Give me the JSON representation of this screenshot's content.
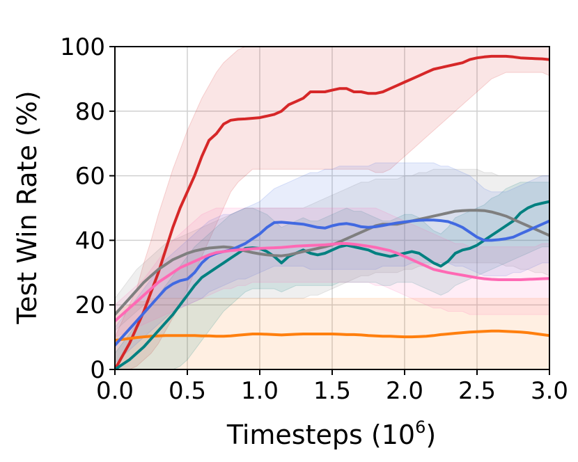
{
  "chart_data": {
    "type": "line",
    "title": "",
    "xlabel_main": "Timesteps (10",
    "xlabel_sup": "6",
    "xlabel_close": ")",
    "ylabel": "Test Win Rate (%)",
    "xlim": [
      0.0,
      3.0
    ],
    "ylim": [
      0,
      100
    ],
    "xticks": [
      "0.0",
      "0.5",
      "1.0",
      "1.5",
      "2.0",
      "2.5",
      "3.0"
    ],
    "yticks": [
      "0",
      "20",
      "40",
      "60",
      "80",
      "100"
    ],
    "grid": true,
    "x": [
      0.0,
      0.05,
      0.1,
      0.15,
      0.2,
      0.25,
      0.3,
      0.35,
      0.4,
      0.45,
      0.5,
      0.55,
      0.6,
      0.65,
      0.7,
      0.75,
      0.8,
      0.85,
      0.9,
      0.95,
      1.0,
      1.05,
      1.1,
      1.15,
      1.2,
      1.25,
      1.3,
      1.35,
      1.4,
      1.45,
      1.5,
      1.55,
      1.6,
      1.65,
      1.7,
      1.75,
      1.8,
      1.85,
      1.9,
      1.95,
      2.0,
      2.05,
      2.1,
      2.15,
      2.2,
      2.25,
      2.3,
      2.35,
      2.4,
      2.45,
      2.5,
      2.55,
      2.6,
      2.65,
      2.7,
      2.75,
      2.8,
      2.85,
      2.9,
      2.95,
      3.0
    ],
    "series": [
      {
        "color": "#d62728",
        "values": [
          0,
          4,
          8,
          13,
          18,
          24,
          30,
          37,
          44,
          50,
          55,
          60,
          66,
          71,
          73,
          76,
          77.2,
          77.5,
          77.6,
          77.8,
          78,
          78.5,
          79,
          80,
          82,
          83,
          84,
          86,
          86,
          86,
          86.5,
          87,
          87,
          86,
          86,
          85.5,
          85.5,
          86,
          87,
          88,
          89,
          90,
          91,
          92,
          93,
          93.5,
          94,
          94.5,
          95,
          96,
          96.5,
          96.8,
          97,
          97,
          97,
          96.8,
          96.5,
          96.4,
          96.3,
          96.2,
          96
        ],
        "lower": [
          0,
          0,
          0,
          1,
          3,
          5,
          8,
          12,
          16,
          20,
          25,
          30,
          35,
          40,
          45,
          50,
          55,
          58,
          60,
          62,
          62,
          62,
          62,
          62,
          62,
          62,
          62,
          62,
          62,
          62,
          62,
          62,
          62,
          62,
          62,
          62,
          61,
          61,
          62,
          64,
          66,
          68,
          70,
          72,
          74,
          76,
          78,
          80,
          82,
          84,
          86,
          88,
          90,
          91,
          92,
          92,
          92,
          92,
          92,
          92,
          91
        ],
        "upper": [
          10,
          15,
          20,
          25,
          33,
          40,
          48,
          55,
          62,
          68,
          74,
          79,
          84,
          88,
          92,
          95,
          97,
          99,
          100,
          100,
          100,
          100,
          100,
          100,
          100,
          100,
          100,
          100,
          100,
          100,
          100,
          100,
          100,
          100,
          100,
          100,
          100,
          100,
          100,
          100,
          100,
          100,
          100,
          100,
          100,
          100,
          100,
          100,
          100,
          100,
          100,
          100,
          100,
          100,
          100,
          100,
          100,
          100,
          100,
          100,
          100
        ]
      },
      {
        "color": "#ff7f0e",
        "values": [
          9,
          9.3,
          9.6,
          9.9,
          10.1,
          10.3,
          10.4,
          10.5,
          10.5,
          10.5,
          10.5,
          10.5,
          10.4,
          10.4,
          10.3,
          10.3,
          10.4,
          10.6,
          10.8,
          11,
          11,
          10.9,
          10.8,
          10.7,
          10.8,
          10.9,
          11,
          11,
          11,
          11,
          11,
          10.9,
          10.8,
          10.8,
          10.7,
          10.5,
          10.4,
          10.3,
          10.3,
          10.2,
          10.1,
          10.1,
          10.2,
          10.3,
          10.5,
          10.8,
          11,
          11.2,
          11.4,
          11.6,
          11.7,
          11.8,
          11.9,
          11.9,
          11.8,
          11.7,
          11.6,
          11.4,
          11.1,
          10.8,
          10.5
        ],
        "lower": [
          0,
          0,
          0,
          0,
          0,
          0,
          0,
          0,
          0,
          0,
          0,
          0,
          0,
          0,
          0,
          0,
          0,
          0,
          0,
          0,
          0,
          0,
          0,
          0,
          0,
          0,
          0,
          0,
          0,
          0,
          0,
          0,
          0,
          0,
          0,
          0,
          0,
          0,
          0,
          0,
          0,
          0,
          0,
          0,
          0,
          0,
          0,
          0,
          0,
          0,
          0,
          0,
          0,
          0,
          0,
          0,
          0,
          0,
          0,
          0,
          0
        ],
        "upper": [
          18,
          19,
          20,
          21,
          21,
          22,
          22,
          22,
          22,
          22,
          22,
          22,
          22,
          22,
          22,
          22,
          22,
          22,
          22,
          22,
          22,
          22,
          22,
          22,
          22,
          22,
          22,
          22,
          22,
          22,
          22,
          22,
          22,
          22,
          22,
          22,
          22,
          22,
          22,
          22,
          22,
          22,
          22,
          22,
          22,
          22,
          22,
          22,
          22,
          22,
          22,
          22,
          22,
          22,
          22,
          22,
          22,
          22,
          22,
          22,
          22
        ]
      },
      {
        "color": "#008080",
        "values": [
          0,
          1.5,
          3,
          5,
          7,
          9.5,
          12,
          14.5,
          17,
          20,
          23,
          26,
          28.5,
          30,
          31.5,
          33,
          34.5,
          36,
          37.5,
          37.7,
          37.5,
          36.5,
          35,
          33,
          35,
          36,
          37,
          36,
          35.5,
          36,
          37,
          38,
          38.5,
          38,
          37.5,
          37,
          36,
          35.5,
          35,
          35.5,
          36,
          36.5,
          36,
          34.5,
          33,
          32,
          33.5,
          36,
          37,
          37.5,
          38.5,
          40,
          41.5,
          43,
          44.5,
          46,
          48.5,
          50,
          51,
          51.5,
          52
        ],
        "lower": [
          0,
          0,
          0,
          0,
          0,
          0,
          0,
          0,
          0,
          1,
          3,
          6,
          9,
          12,
          15,
          18,
          20,
          22,
          24,
          25,
          25,
          25,
          25,
          24,
          25,
          26,
          26,
          26,
          26,
          26,
          26,
          27,
          27,
          27,
          27,
          27,
          27,
          26,
          26,
          27,
          27,
          27,
          26,
          25,
          24,
          23,
          24,
          26,
          27,
          28,
          29,
          30,
          31,
          32,
          33,
          34,
          35,
          36,
          37,
          38,
          38
        ],
        "upper": [
          5,
          8,
          11,
          14,
          17,
          20,
          23,
          26,
          29,
          32,
          35,
          38,
          40,
          42,
          44,
          46,
          48,
          49,
          50,
          50,
          49,
          48,
          46,
          44,
          45,
          46,
          47,
          46,
          46,
          47,
          48,
          49,
          50,
          49,
          49,
          48,
          47,
          46,
          46,
          47,
          48,
          48,
          47,
          45,
          43,
          42,
          44,
          47,
          48,
          49,
          50,
          51,
          53,
          54,
          56,
          57,
          58,
          58,
          58,
          58,
          58
        ]
      },
      {
        "color": "#7f7f7f",
        "values": [
          17,
          19.5,
          22,
          24.5,
          27,
          29,
          31,
          32.5,
          34,
          35,
          36,
          36.7,
          37.2,
          37.6,
          37.8,
          38,
          37.8,
          37.3,
          36.7,
          36.2,
          35.8,
          35.5,
          35.3,
          35.2,
          35.5,
          36,
          36.5,
          37,
          37.5,
          38,
          38.6,
          39.5,
          40.5,
          41.5,
          42.5,
          43.5,
          44.5,
          45,
          45,
          45,
          45.5,
          46,
          46.5,
          47,
          47.5,
          48,
          48.5,
          49,
          49.2,
          49.3,
          49.3,
          49.2,
          48.8,
          48.2,
          47.5,
          46.5,
          45.5,
          44.5,
          43.5,
          42.5,
          41.5
        ],
        "lower": [
          12,
          14,
          16,
          18,
          20,
          21,
          22,
          22,
          22,
          22,
          22,
          22,
          22,
          22,
          22,
          22,
          22,
          22,
          22,
          22,
          22,
          22,
          22,
          22,
          22,
          22,
          22,
          23,
          23,
          24,
          25,
          26,
          27,
          28,
          29,
          29,
          30,
          30,
          30,
          30,
          31,
          31,
          32,
          32,
          33,
          33,
          33,
          33,
          33,
          33,
          33,
          33,
          33,
          33,
          32,
          32,
          31,
          31,
          30,
          30,
          29
        ],
        "upper": [
          22,
          25,
          28,
          31,
          33,
          35,
          37,
          39,
          40,
          41,
          42,
          43,
          44,
          45,
          46,
          47,
          48,
          49,
          50,
          50,
          50,
          50,
          50,
          50,
          50,
          50,
          50,
          51,
          52,
          53,
          54,
          55,
          56,
          57,
          58,
          58,
          59,
          59,
          59,
          59,
          60,
          60,
          61,
          61,
          62,
          62,
          62,
          62,
          62,
          62,
          62,
          61,
          61,
          60,
          60,
          60,
          60,
          60,
          60,
          60,
          60
        ]
      },
      {
        "color": "#4169e1",
        "values": [
          7.5,
          10,
          12.5,
          15,
          17.5,
          20,
          22.5,
          25,
          26.5,
          27.5,
          28,
          30,
          33,
          35,
          36,
          36.5,
          37,
          38,
          39,
          40.5,
          42,
          44,
          45.5,
          45.6,
          45.4,
          45.2,
          45,
          44.5,
          44,
          43.8,
          44.5,
          45,
          45.2,
          44.8,
          44.2,
          44,
          44.2,
          44.6,
          45,
          45.4,
          45.7,
          46,
          46.2,
          46.3,
          46.3,
          46.1,
          45.8,
          45,
          44,
          42.5,
          41,
          40,
          40,
          40.2,
          40.5,
          41,
          42,
          43,
          44,
          45,
          46
        ],
        "lower": [
          2,
          4,
          6,
          8,
          10,
          12,
          14,
          16,
          18,
          19,
          20,
          21,
          22,
          24,
          25,
          26,
          27,
          28,
          28,
          29,
          30,
          31,
          32,
          32,
          32,
          32,
          32,
          31,
          31,
          31,
          31,
          31,
          31,
          31,
          31,
          31,
          31,
          32,
          32,
          32,
          32,
          33,
          33,
          33,
          33,
          33,
          33,
          32,
          32,
          31,
          30,
          29,
          29,
          29,
          29,
          30,
          30,
          31,
          32,
          33,
          33
        ],
        "upper": [
          13,
          16,
          19,
          22,
          25,
          28,
          31,
          34,
          36,
          38,
          40,
          42,
          44,
          46,
          47,
          48,
          48,
          49,
          50,
          51,
          52,
          54,
          56,
          57,
          58,
          59,
          60,
          61,
          61,
          62,
          62,
          63,
          63,
          63,
          63,
          63,
          64,
          64,
          64,
          64,
          64,
          64,
          64,
          64,
          64,
          63,
          63,
          62,
          61,
          60,
          58,
          56,
          55,
          55,
          55,
          56,
          57,
          58,
          59,
          60,
          60
        ]
      },
      {
        "color": "#ff69b4",
        "values": [
          15,
          17,
          19,
          21,
          23,
          25,
          27,
          28.5,
          30,
          31.5,
          32.5,
          33.5,
          34.5,
          35.5,
          36.2,
          36.5,
          36.8,
          37,
          37.2,
          37.4,
          37.5,
          37.6,
          37.7,
          37.8,
          38,
          38.2,
          38.3,
          38.4,
          38.5,
          38.6,
          38.8,
          39,
          39,
          38.8,
          38.5,
          38.2,
          37.8,
          37.3,
          36.8,
          36,
          35,
          34,
          33,
          32,
          31,
          30.5,
          30,
          29.6,
          29.2,
          28.8,
          28.4,
          28.1,
          27.9,
          27.8,
          27.8,
          27.8,
          27.8,
          27.9,
          28,
          28.1,
          28.2
        ],
        "lower": [
          10,
          11,
          12,
          13,
          14,
          15,
          16,
          17,
          18,
          19,
          20,
          21,
          22,
          23,
          24,
          25,
          25,
          26,
          26,
          27,
          27,
          27,
          27,
          27,
          27,
          27,
          27,
          27,
          27,
          27,
          27,
          27,
          27,
          27,
          27,
          27,
          26,
          26,
          25,
          24,
          23,
          22,
          21,
          20,
          19,
          19,
          18,
          18,
          18,
          17,
          17,
          17,
          17,
          17,
          17,
          17,
          17,
          17,
          17,
          17,
          17
        ],
        "upper": [
          20,
          22,
          24,
          26,
          28,
          31,
          34,
          37,
          40,
          42,
          44,
          46,
          48,
          49,
          50,
          50,
          50,
          50,
          50,
          50,
          50,
          50,
          50,
          50,
          50,
          50,
          50,
          50,
          50,
          50,
          50,
          50,
          50,
          50,
          50,
          50,
          50,
          49,
          48,
          47,
          46,
          45,
          44,
          43,
          42,
          41,
          40,
          39,
          39,
          38,
          38,
          38,
          38,
          38,
          38,
          38,
          38,
          38,
          38,
          39,
          39
        ]
      }
    ]
  }
}
